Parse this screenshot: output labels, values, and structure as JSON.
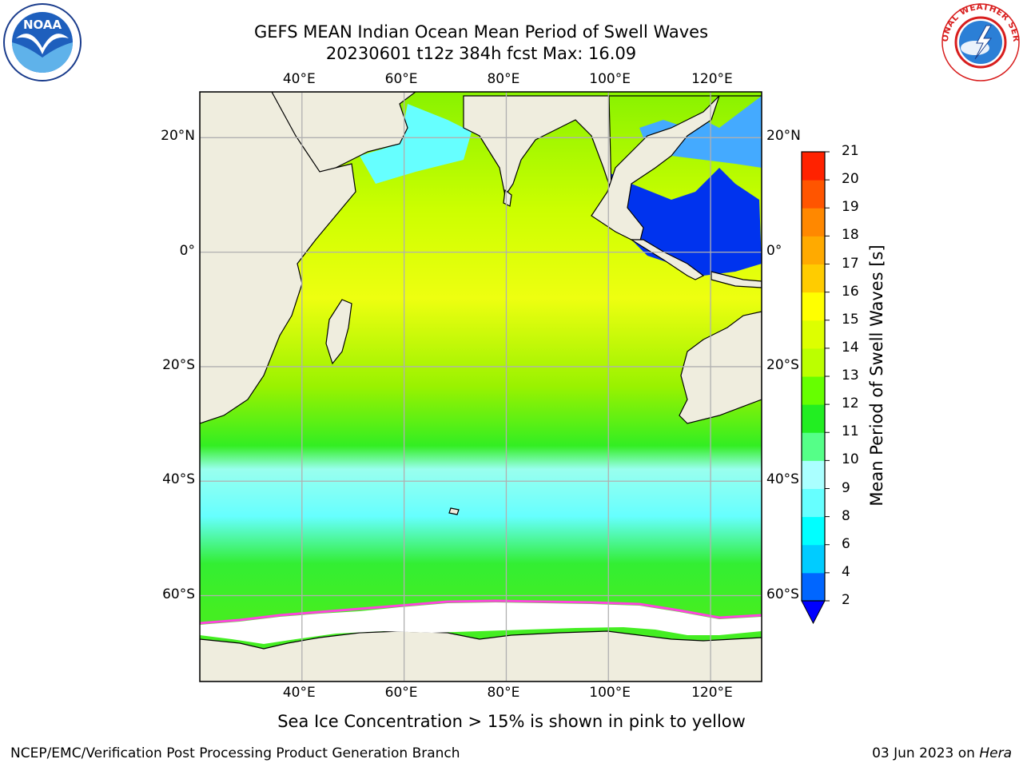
{
  "title": {
    "line1": "GEFS MEAN Indian Ocean Mean Period of Swell Waves",
    "line2": "20230601 t12z 384h fcst   Max: 16.09"
  },
  "axes": {
    "lon_ticks": [
      "40°E",
      "60°E",
      "80°E",
      "100°E",
      "120°E"
    ],
    "lat_ticks": [
      "20°N",
      "0°",
      "20°S",
      "40°S",
      "60°S"
    ],
    "lon_range": [
      20,
      130
    ],
    "lat_range": [
      -75,
      28
    ],
    "grid": true
  },
  "colorbar": {
    "label": "Mean Period of Swell Waves [s]",
    "ticks": [
      "2",
      "4",
      "6",
      "8",
      "9",
      "10",
      "11",
      "12",
      "13",
      "14",
      "15",
      "16",
      "17",
      "18",
      "19",
      "20",
      "21"
    ],
    "colors": [
      "#0066ff",
      "#00ccff",
      "#00ffff",
      "#66ffff",
      "#aaffff",
      "#55ff88",
      "#22ee22",
      "#66ff00",
      "#bbff00",
      "#ddff00",
      "#ffff00",
      "#ffcc00",
      "#ffaa00",
      "#ff8800",
      "#ff5500",
      "#ff2200"
    ],
    "extend_below_color": "#0000ff"
  },
  "note": "Sea Ice Concentration > 15% is shown in pink to yellow",
  "footer": {
    "left": "NCEP/EMC/Verification Post Processing Product Generation Branch",
    "date": "03 Jun 2023 on ",
    "host": "Hera"
  },
  "logos": {
    "noaa_text": "NOAA",
    "nws_text": "NATIONAL WEATHER SERVICE"
  },
  "colors": {
    "land": "#efedde",
    "grid": "#b0b0b0",
    "ice": "#ffffff"
  }
}
